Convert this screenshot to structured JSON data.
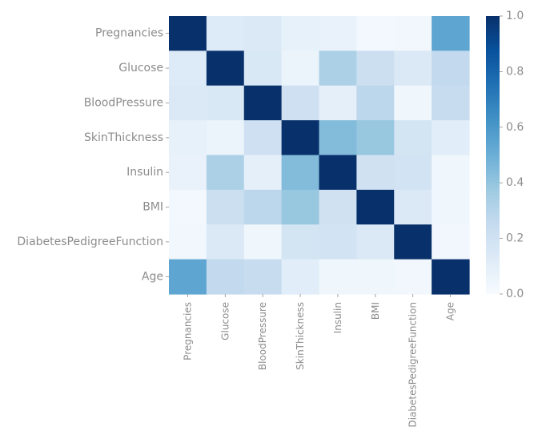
{
  "chart_data": {
    "type": "heatmap",
    "title": "",
    "xlabel": "",
    "ylabel": "",
    "labels": [
      "Pregnancies",
      "Glucose",
      "BloodPressure",
      "SkinThickness",
      "Insulin",
      "BMI",
      "DiabetesPedigreeFunction",
      "Age"
    ],
    "matrix": [
      [
        1.0,
        0.13,
        0.14,
        0.08,
        0.07,
        0.02,
        0.03,
        0.54
      ],
      [
        0.13,
        1.0,
        0.15,
        0.06,
        0.33,
        0.22,
        0.14,
        0.26
      ],
      [
        0.14,
        0.15,
        1.0,
        0.21,
        0.09,
        0.28,
        0.04,
        0.24
      ],
      [
        0.08,
        0.06,
        0.21,
        1.0,
        0.44,
        0.39,
        0.18,
        0.11
      ],
      [
        0.07,
        0.33,
        0.09,
        0.44,
        1.0,
        0.2,
        0.19,
        0.04
      ],
      [
        0.02,
        0.22,
        0.28,
        0.39,
        0.2,
        1.0,
        0.14,
        0.04
      ],
      [
        0.03,
        0.14,
        0.04,
        0.18,
        0.19,
        0.14,
        1.0,
        0.03
      ],
      [
        0.54,
        0.26,
        0.24,
        0.11,
        0.04,
        0.04,
        0.03,
        1.0
      ]
    ],
    "colorbar": {
      "colormap": "Blues",
      "range": [
        0.0,
        1.0
      ],
      "ticks": [
        0.0,
        0.2,
        0.4,
        0.6,
        0.8,
        1.0
      ],
      "tick_labels": [
        "0.0",
        "0.2",
        "0.4",
        "0.6",
        "0.8",
        "1.0"
      ]
    },
    "grid": false
  }
}
